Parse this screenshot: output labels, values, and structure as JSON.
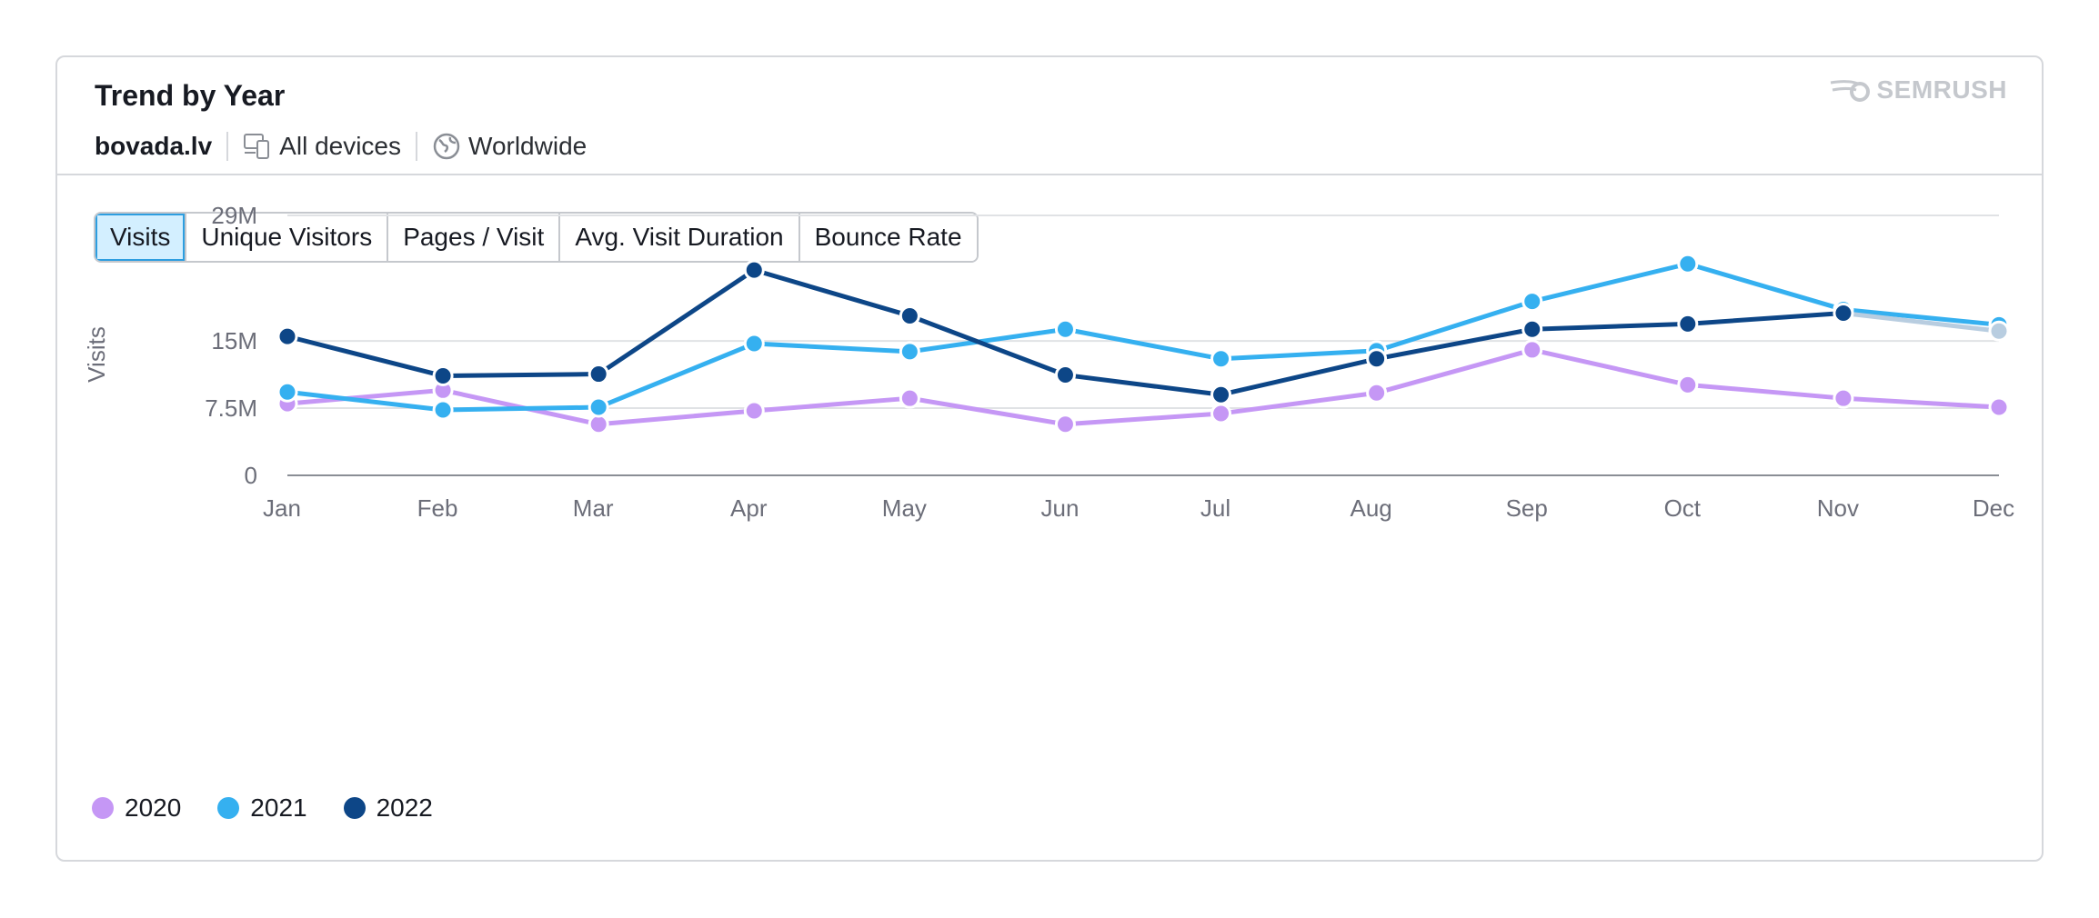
{
  "card": {
    "title": "Trend by Year",
    "logo_text": "SEMRUSH",
    "domain": "bovada.lv",
    "devices_label": "All devices",
    "region_label": "Worldwide"
  },
  "tabs": [
    {
      "label": "Visits",
      "active": true
    },
    {
      "label": "Unique Visitors",
      "active": false
    },
    {
      "label": "Pages / Visit",
      "active": false
    },
    {
      "label": "Avg. Visit Duration",
      "active": false
    },
    {
      "label": "Bounce Rate",
      "active": false
    }
  ],
  "icons": {
    "devices": "devices-icon",
    "globe": "globe-icon",
    "logo": "semrush-logo-icon"
  },
  "chart_data": {
    "type": "line",
    "categories": [
      "Jan",
      "Feb",
      "Mar",
      "Apr",
      "May",
      "Jun",
      "Jul",
      "Aug",
      "Sep",
      "Oct",
      "Nov",
      "Dec"
    ],
    "ylabel": "Visits",
    "ylim": [
      0,
      29000000
    ],
    "yticks": [
      0,
      7500000,
      15000000,
      29000000
    ],
    "ytick_labels": [
      "0",
      "7.5M",
      "15M",
      "29M"
    ],
    "grid": true,
    "legend_position": "bottom-left",
    "series": [
      {
        "name": "2020",
        "color": "#c597f5",
        "values": [
          8000000,
          9500000,
          5700000,
          7200000,
          8600000,
          5700000,
          6900000,
          9200000,
          14000000,
          10100000,
          8600000,
          7600000
        ]
      },
      {
        "name": "2021",
        "color": "#35b0f0",
        "values": [
          9300000,
          7300000,
          7600000,
          14700000,
          13800000,
          16300000,
          13000000,
          13900000,
          19400000,
          23600000,
          18500000,
          16800000
        ]
      },
      {
        "name": "2022",
        "color": "#0d4687",
        "values": [
          15500000,
          11100000,
          11300000,
          22900000,
          17800000,
          11200000,
          9000000,
          13000000,
          16300000,
          16900000,
          18100000,
          16100000
        ],
        "partial_last_color": "#b8cde0"
      }
    ]
  }
}
